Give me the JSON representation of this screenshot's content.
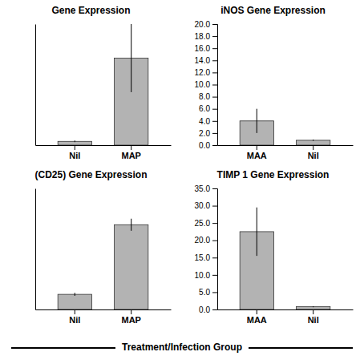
{
  "chart_data": [
    {
      "type": "bar",
      "title": "Gene Expression",
      "categories": [
        "Nil",
        "MAP"
      ],
      "values": [
        0.5,
        11.5
      ],
      "errors": [
        0.1,
        4.5
      ],
      "color": "#b3b3b3",
      "ylim": [
        0,
        16
      ],
      "tick_labels": "x"
    },
    {
      "type": "bar",
      "title": "iNOS Gene Expression",
      "categories": [
        "MAA",
        "Nil"
      ],
      "values": [
        4.0,
        0.8
      ],
      "errors": [
        2.0,
        0.1
      ],
      "color": "#b3b3b3",
      "ylim": [
        0,
        20
      ],
      "yticks": [
        {
          "value": 0,
          "label": "0.0"
        },
        {
          "value": 2,
          "label": "2.0"
        },
        {
          "value": 4,
          "label": "4.0"
        },
        {
          "value": 6,
          "label": "6.0"
        },
        {
          "value": 8,
          "label": "8.0"
        },
        {
          "value": 10,
          "label": "10.0"
        },
        {
          "value": 12,
          "label": "12.0"
        },
        {
          "value": 14,
          "label": "14.0"
        },
        {
          "value": 16,
          "label": "16.0"
        },
        {
          "value": 18,
          "label": "18.0"
        },
        {
          "value": 20,
          "label": "20.0"
        }
      ]
    },
    {
      "type": "bar",
      "title": "(CD25) Gene Expression",
      "categories": [
        "Nil",
        "MAP"
      ],
      "values": [
        0.5,
        2.8
      ],
      "errors": [
        0.05,
        0.2
      ],
      "color": "#b3b3b3",
      "ylim": [
        0,
        4
      ],
      "tick_labels": "x"
    },
    {
      "type": "bar",
      "title": "TIMP 1 Gene Expression",
      "categories": [
        "MAA",
        "Nil"
      ],
      "values": [
        22.5,
        0.8
      ],
      "errors": [
        7.0,
        0.15
      ],
      "color": "#b3b3b3",
      "ylim": [
        0,
        35
      ],
      "yticks": [
        {
          "value": 0,
          "label": "0.0"
        },
        {
          "value": 5,
          "label": "5.0"
        },
        {
          "value": 10,
          "label": "10.0"
        },
        {
          "value": 15,
          "label": "15.0"
        },
        {
          "value": 20,
          "label": "20.0"
        },
        {
          "value": 25,
          "label": "25.0"
        },
        {
          "value": 30,
          "label": "30.0"
        },
        {
          "value": 35,
          "label": "35.0"
        }
      ]
    }
  ],
  "xlabel": "Treatment/Infection Group"
}
